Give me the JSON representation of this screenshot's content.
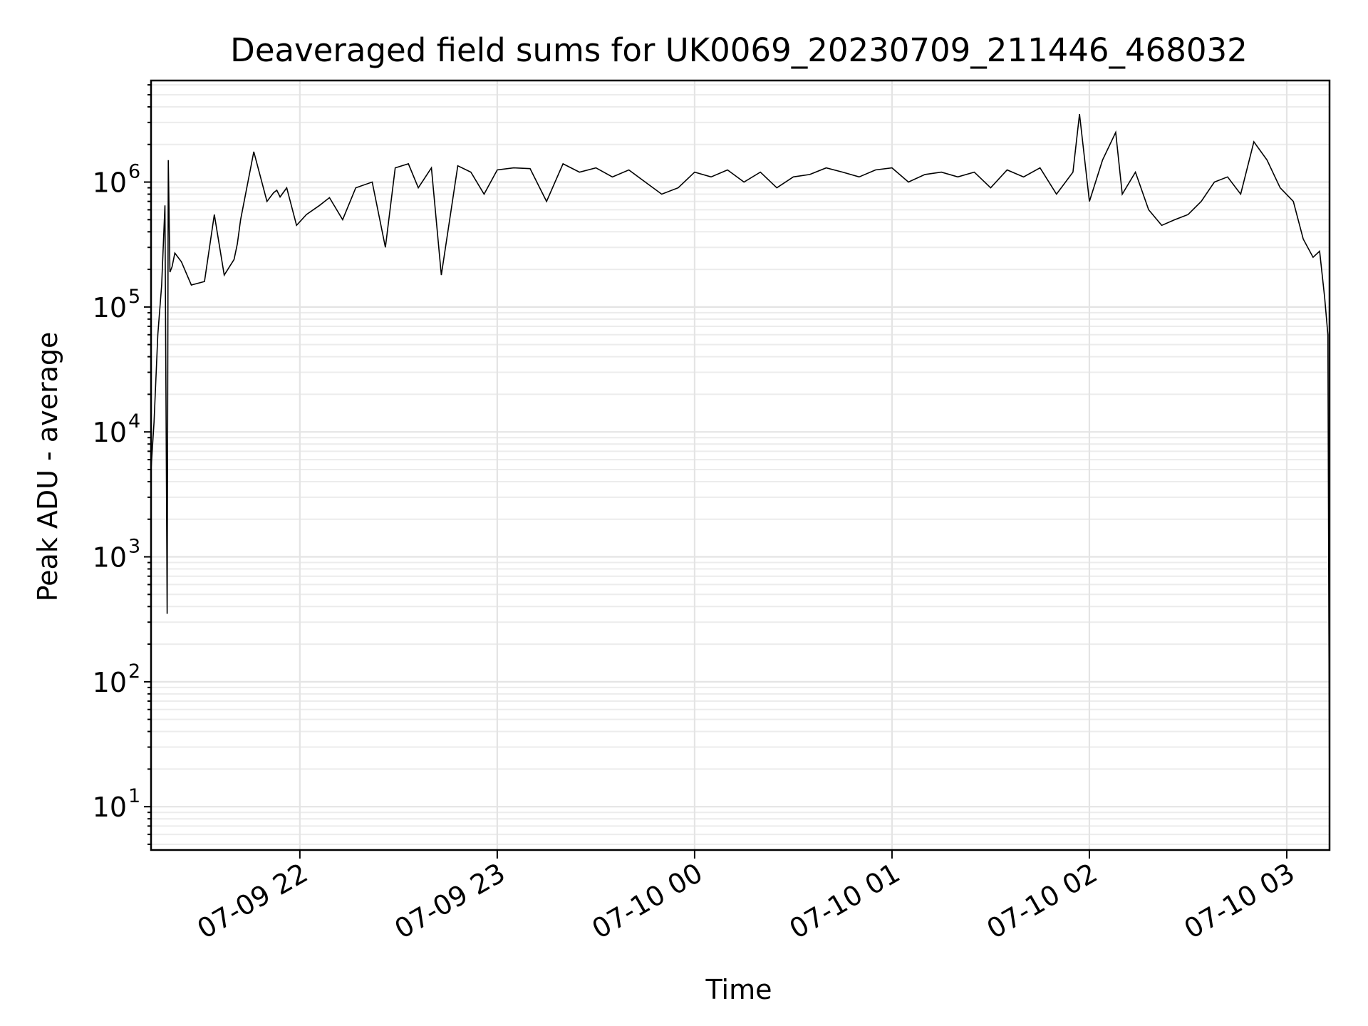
{
  "chart_data": {
    "type": "line",
    "title": "Deaveraged field sums for UK0069_20230709_211446_468032",
    "xlabel": "Time",
    "ylabel": "Peak ADU - average",
    "yscale": "log",
    "ylim": [
      4.5,
      6500000
    ],
    "xlim": [
      "2023-07-09 21:14:46",
      "2023-07-10 03:13:00"
    ],
    "grid": true,
    "line_color": "#000000",
    "x_ticks": [
      {
        "value": "2023-07-09 22:00",
        "label": "07-09 22"
      },
      {
        "value": "2023-07-09 23:00",
        "label": "07-09 23"
      },
      {
        "value": "2023-07-10 00:00",
        "label": "07-10 00"
      },
      {
        "value": "2023-07-10 01:00",
        "label": "07-10 01"
      },
      {
        "value": "2023-07-10 02:00",
        "label": "07-10 02"
      },
      {
        "value": "2023-07-10 03:00",
        "label": "07-10 03"
      }
    ],
    "y_ticks": [
      {
        "value": 10,
        "base": "10",
        "exp": "1"
      },
      {
        "value": 100,
        "base": "10",
        "exp": "2"
      },
      {
        "value": 1000,
        "base": "10",
        "exp": "3"
      },
      {
        "value": 10000,
        "base": "10",
        "exp": "4"
      },
      {
        "value": 100000,
        "base": "10",
        "exp": "5"
      },
      {
        "value": 1000000,
        "base": "10",
        "exp": "6"
      }
    ],
    "series": [
      {
        "x": [
          "2023-07-09 21:14:46",
          "2023-07-09 21:15:40",
          "2023-07-09 21:16:50",
          "2023-07-09 21:18:00",
          "2023-07-09 21:19:00",
          "2023-07-09 21:19:40",
          "2023-07-09 21:20:00",
          "2023-07-09 21:20:30",
          "2023-07-09 21:20:50",
          "2023-07-09 21:21:10",
          "2023-07-09 21:22:00",
          "2023-07-09 21:24:00",
          "2023-07-09 21:27:00",
          "2023-07-09 21:31:00",
          "2023-07-09 21:34:00",
          "2023-07-09 21:37:00",
          "2023-07-09 21:40:00",
          "2023-07-09 21:41:00",
          "2023-07-09 21:42:00",
          "2023-07-09 21:46:00",
          "2023-07-09 21:50:00",
          "2023-07-09 21:52:00",
          "2023-07-09 21:53:00",
          "2023-07-09 21:54:00",
          "2023-07-09 21:56:00",
          "2023-07-09 21:59:00",
          "2023-07-09 22:02:00",
          "2023-07-09 22:06:00",
          "2023-07-09 22:09:00",
          "2023-07-09 22:13:00",
          "2023-07-09 22:17:00",
          "2023-07-09 22:22:00",
          "2023-07-09 22:26:00",
          "2023-07-09 22:29:00",
          "2023-07-09 22:33:00",
          "2023-07-09 22:36:00",
          "2023-07-09 22:40:00",
          "2023-07-09 22:43:00",
          "2023-07-09 22:48:00",
          "2023-07-09 22:52:00",
          "2023-07-09 22:56:00",
          "2023-07-09 23:00:00",
          "2023-07-09 23:05:00",
          "2023-07-09 23:10:00",
          "2023-07-09 23:15:00",
          "2023-07-09 23:20:00",
          "2023-07-09 23:25:00",
          "2023-07-09 23:30:00",
          "2023-07-09 23:35:00",
          "2023-07-09 23:40:00",
          "2023-07-09 23:45:00",
          "2023-07-09 23:50:00",
          "2023-07-09 23:55:00",
          "2023-07-10 00:00:00",
          "2023-07-10 00:05:00",
          "2023-07-10 00:10:00",
          "2023-07-10 00:15:00",
          "2023-07-10 00:20:00",
          "2023-07-10 00:25:00",
          "2023-07-10 00:30:00",
          "2023-07-10 00:35:00",
          "2023-07-10 00:40:00",
          "2023-07-10 00:45:00",
          "2023-07-10 00:50:00",
          "2023-07-10 00:55:00",
          "2023-07-10 01:00:00",
          "2023-07-10 01:05:00",
          "2023-07-10 01:10:00",
          "2023-07-10 01:15:00",
          "2023-07-10 01:20:00",
          "2023-07-10 01:25:00",
          "2023-07-10 01:30:00",
          "2023-07-10 01:35:00",
          "2023-07-10 01:40:00",
          "2023-07-10 01:45:00",
          "2023-07-10 01:50:00",
          "2023-07-10 01:55:00",
          "2023-07-10 01:57:00",
          "2023-07-10 02:00:00",
          "2023-07-10 02:04:00",
          "2023-07-10 02:08:00",
          "2023-07-10 02:10:00",
          "2023-07-10 02:14:00",
          "2023-07-10 02:18:00",
          "2023-07-10 02:22:00",
          "2023-07-10 02:26:00",
          "2023-07-10 02:30:00",
          "2023-07-10 02:34:00",
          "2023-07-10 02:38:00",
          "2023-07-10 02:42:00",
          "2023-07-10 02:46:00",
          "2023-07-10 02:50:00",
          "2023-07-10 02:54:00",
          "2023-07-10 02:58:00",
          "2023-07-10 03:02:00",
          "2023-07-10 03:05:00",
          "2023-07-10 03:08:00",
          "2023-07-10 03:10:00",
          "2023-07-10 03:11:30",
          "2023-07-10 03:12:30",
          "2023-07-10 03:13:00"
        ],
        "y": [
          5000,
          12000,
          60000,
          150000,
          650000,
          350,
          1500000,
          190000,
          200000,
          210000,
          270000,
          230000,
          150000,
          160000,
          550000,
          180000,
          240000,
          320000,
          500000,
          1750000,
          700000,
          820000,
          860000,
          760000,
          900000,
          450000,
          550000,
          650000,
          750000,
          500000,
          900000,
          1000000,
          300000,
          1300000,
          1400000,
          900000,
          1300000,
          180000,
          1350000,
          1200000,
          800000,
          1250000,
          1300000,
          1280000,
          700000,
          1400000,
          1200000,
          1300000,
          1100000,
          1250000,
          1000000,
          800000,
          900000,
          1200000,
          1100000,
          1250000,
          1000000,
          1200000,
          900000,
          1100000,
          1150000,
          1300000,
          1200000,
          1100000,
          1250000,
          1300000,
          1000000,
          1150000,
          1200000,
          1100000,
          1200000,
          900000,
          1250000,
          1100000,
          1300000,
          800000,
          1200000,
          3500000,
          700000,
          1500000,
          2500000,
          800000,
          1200000,
          600000,
          450000,
          500000,
          550000,
          700000,
          1000000,
          1100000,
          800000,
          2100000,
          1500000,
          900000,
          700000,
          350000,
          250000,
          280000,
          120000,
          60000,
          10
        ]
      }
    ]
  }
}
